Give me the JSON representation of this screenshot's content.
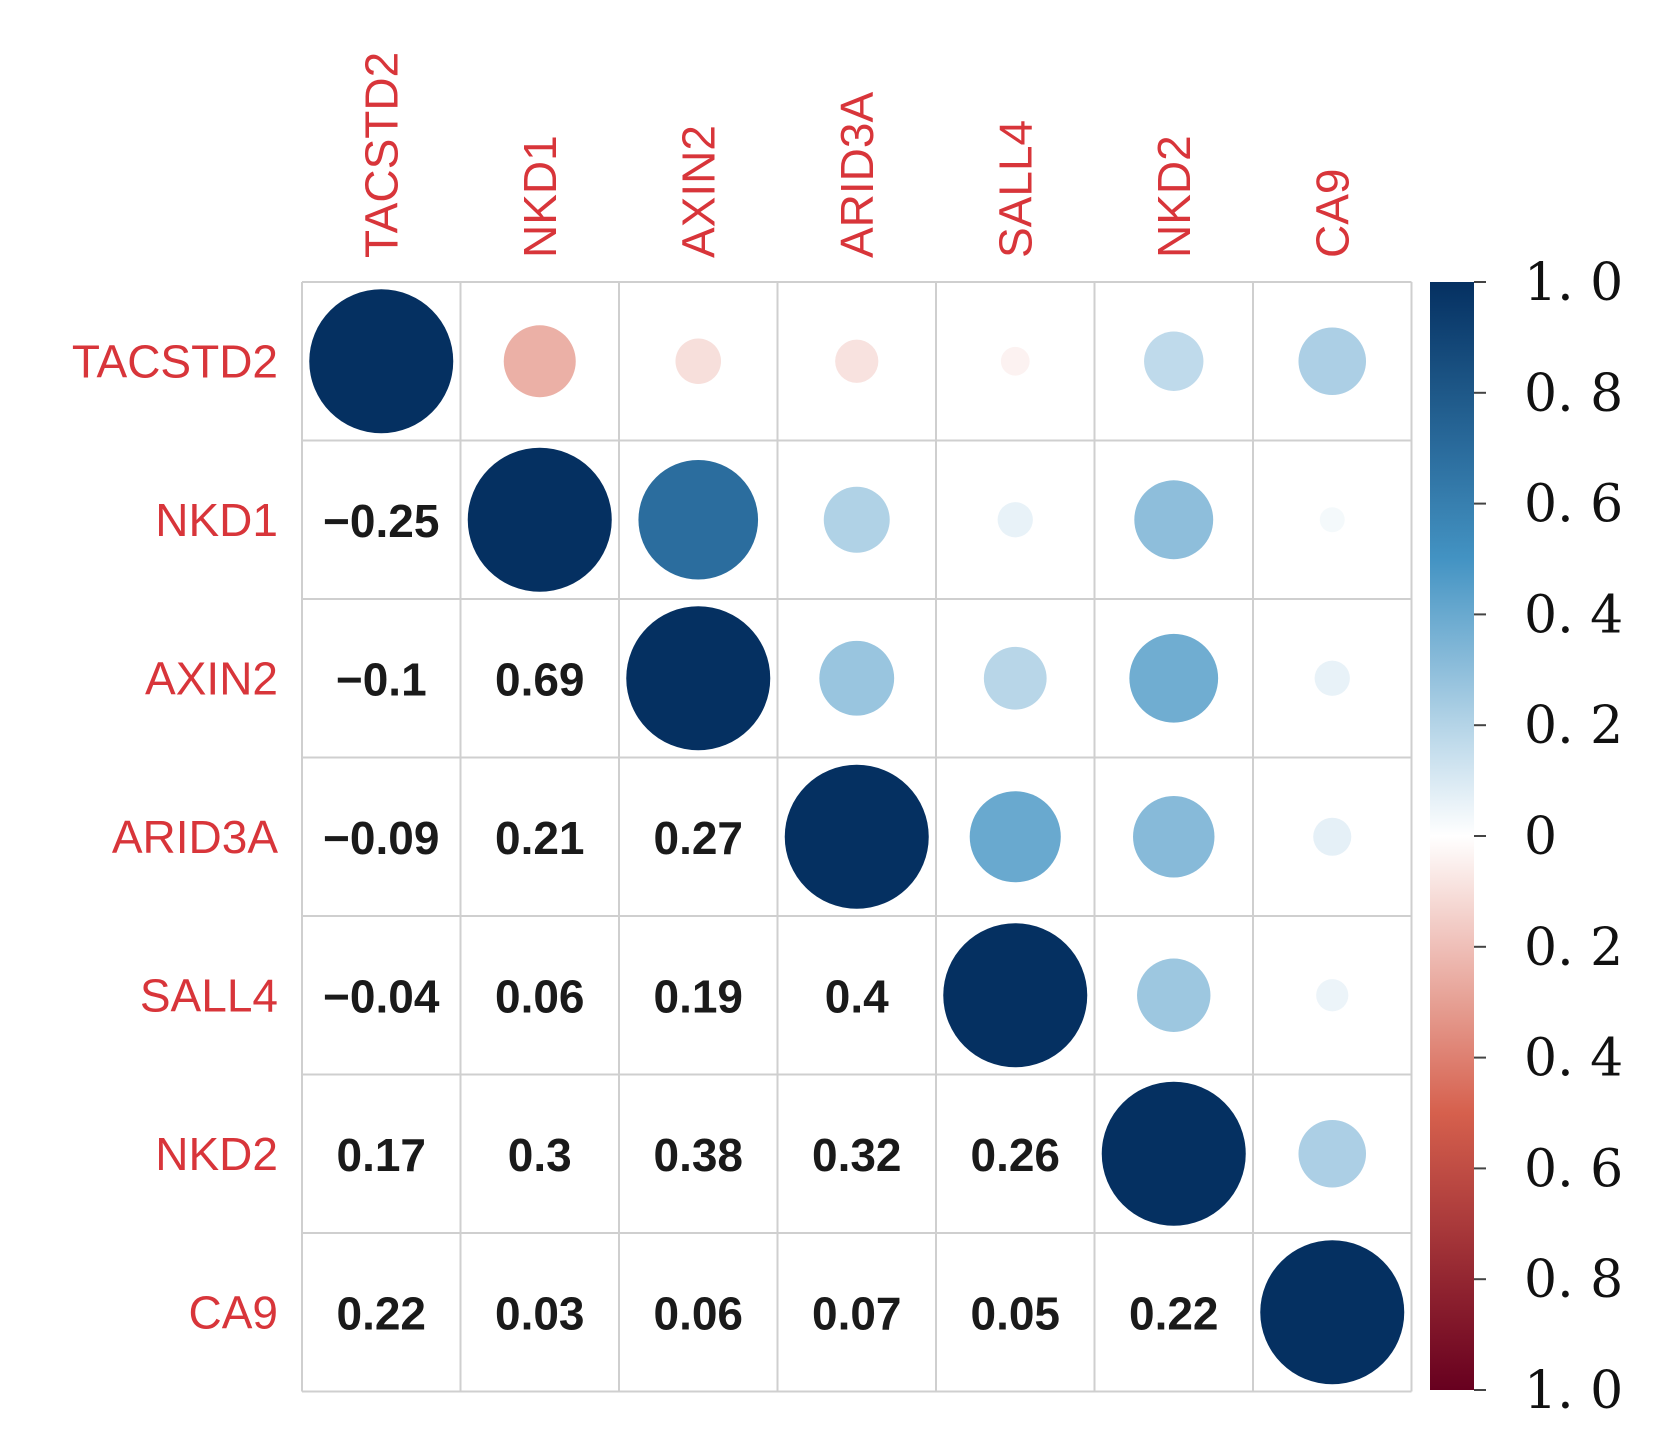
{
  "chart_data": {
    "type": "heatmap",
    "style": "correlation-matrix: circles in upper triangle, coefficients in lower triangle",
    "variables": [
      "TACSTD2",
      "NKD1",
      "AXIN2",
      "ARID3A",
      "SALL4",
      "NKD2",
      "CA9"
    ],
    "matrix": [
      [
        1.0,
        -0.25,
        -0.1,
        -0.09,
        -0.04,
        0.17,
        0.22
      ],
      [
        -0.25,
        1.0,
        0.69,
        0.21,
        0.06,
        0.3,
        0.03
      ],
      [
        -0.1,
        0.69,
        1.0,
        0.27,
        0.19,
        0.38,
        0.06
      ],
      [
        -0.09,
        0.21,
        0.27,
        1.0,
        0.4,
        0.32,
        0.07
      ],
      [
        -0.04,
        0.06,
        0.19,
        0.4,
        1.0,
        0.26,
        0.05
      ],
      [
        0.17,
        0.3,
        0.38,
        0.32,
        0.26,
        1.0,
        0.22
      ],
      [
        0.22,
        0.03,
        0.06,
        0.07,
        0.05,
        0.22,
        1.0
      ]
    ],
    "lower_labels": [
      [],
      [
        "−0.25"
      ],
      [
        "−0.1",
        "0.69"
      ],
      [
        "−0.09",
        "0.21",
        "0.27"
      ],
      [
        "−0.04",
        "0.06",
        "0.19",
        "0.4"
      ],
      [
        "0.17",
        "0.3",
        "0.38",
        "0.32",
        "0.26"
      ],
      [
        "0.22",
        "0.03",
        "0.06",
        "0.07",
        "0.05",
        "0.22"
      ]
    ],
    "colorbar": {
      "range": [
        -1,
        1
      ],
      "labels": [
        "1. 0",
        "0. 8",
        "0. 6",
        "0. 4",
        "0. 2",
        "0",
        "0. 2",
        "0. 4",
        "0. 6",
        "0. 8",
        "1. 0"
      ],
      "colors": {
        "neg_end": "#67001f",
        "neg_mid": "#d6604d",
        "zero": "#ffffff",
        "pos_mid": "#4393c3",
        "pos_end": "#053061"
      }
    }
  }
}
